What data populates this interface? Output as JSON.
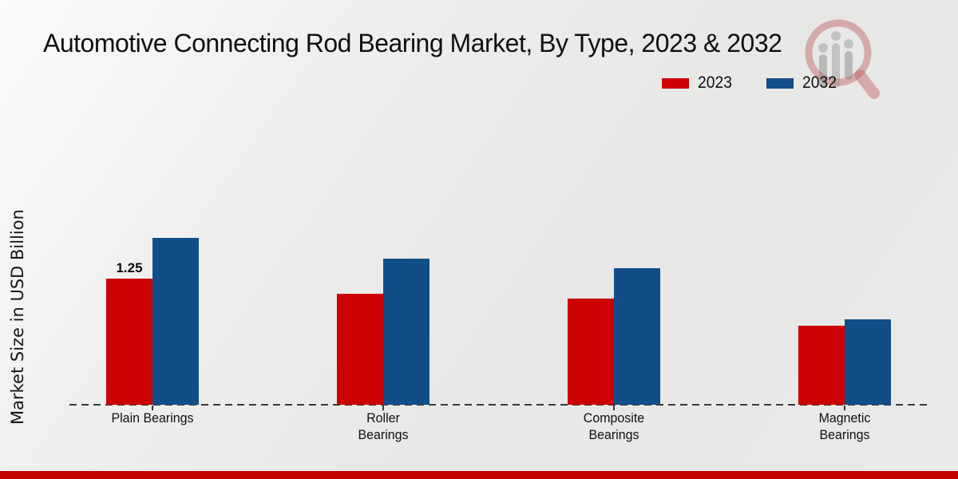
{
  "title": "Automotive Connecting Rod Bearing Market, By Type, 2023 & 2032",
  "colors": {
    "series_2023": "#cc0101",
    "series_2032": "#114e87",
    "footer_accent": "#c00404",
    "axis": "#3a3a3a"
  },
  "watermark_icon": "magnifier-bar-chart-logo",
  "footer": {
    "accent_bar": true
  },
  "chart_data": {
    "type": "bar",
    "title": "Automotive Connecting Rod Bearing Market, By Type, 2023 & 2032",
    "categories": [
      "Plain Bearings",
      "Roller Bearings",
      "Composite Bearings",
      "Magnetic Bearings"
    ],
    "series": [
      {
        "name": "2023",
        "color": "#cc0101",
        "values": [
          1.25,
          1.1,
          1.05,
          0.78
        ]
      },
      {
        "name": "2032",
        "color": "#114e87",
        "values": [
          1.65,
          1.45,
          1.35,
          0.85
        ]
      }
    ],
    "data_labels": [
      {
        "series": "2023",
        "category": "Plain Bearings",
        "text": "1.25"
      }
    ],
    "xlabel": "",
    "ylabel": "Market Size in USD Billion",
    "ylim": [
      0,
      2
    ],
    "grid": "off",
    "baseline_style": "dashed",
    "legend_position": "top-right"
  }
}
